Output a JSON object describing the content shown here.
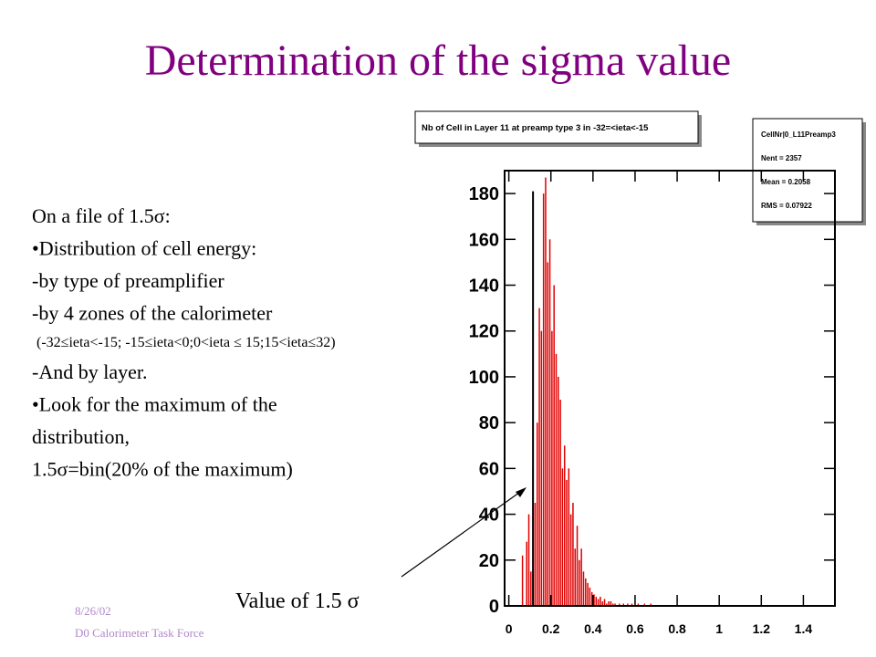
{
  "slide": {
    "title": "Determination of the sigma value",
    "lines": [
      "On a file of 1.5σ:",
      "•Distribution of cell energy:",
      "-by type of preamplifier",
      "-by 4 zones of the calorimeter"
    ],
    "zones": "(-32≤ieta<-15; -15≤ieta<0;0<ieta ≤ 15;15<ieta≤32)",
    "lines2": [
      "-And by layer.",
      "•Look for the maximum of the",
      "distribution,",
      "1.5σ=bin(20% of the maximum)"
    ],
    "annotation": "Value of 1.5 σ",
    "footer": [
      "8/26/02",
      "D0 Calorimeter Task Force"
    ]
  },
  "chart_data": {
    "type": "histogram",
    "title": "Nb of Cell in Layer 11 at preamp type 3 in -32=<ieta<-15",
    "stats": [
      "CellNr|0_L11Preamp3",
      "Nent = 2357",
      "Mean = 0.2058",
      "RMS = 0.07922"
    ],
    "bins": [
      0.05,
      0.06,
      0.07,
      0.08,
      0.09,
      0.1,
      0.11,
      0.12,
      0.13,
      0.14,
      0.15,
      0.16,
      0.17,
      0.18,
      0.19,
      0.2,
      0.21,
      0.22,
      0.23,
      0.24,
      0.25,
      0.26,
      0.27,
      0.28,
      0.29,
      0.3,
      0.31,
      0.32,
      0.33,
      0.34,
      0.35,
      0.36,
      0.37,
      0.38,
      0.39,
      0.4,
      0.41,
      0.42,
      0.43,
      0.44,
      0.45,
      0.46,
      0.47,
      0.48,
      0.49,
      0.5,
      0.51,
      0.52,
      0.53,
      0.54,
      0.55,
      0.56,
      0.57,
      0.58,
      0.59,
      0.6,
      0.61,
      0.62,
      0.63,
      0.64,
      0.65,
      0.66,
      0.67,
      0.68,
      0.69,
      0.7
    ],
    "values": [
      0,
      22,
      0,
      28,
      40,
      15,
      60,
      45,
      80,
      130,
      120,
      180,
      187,
      150,
      160,
      120,
      140,
      110,
      100,
      90,
      60,
      70,
      55,
      60,
      40,
      45,
      25,
      35,
      20,
      25,
      15,
      12,
      10,
      8,
      6,
      5,
      4,
      3,
      4,
      2,
      3,
      1,
      2,
      2,
      1,
      1,
      0,
      1,
      0,
      1,
      0,
      1,
      0,
      1,
      0,
      0,
      1,
      0,
      0,
      1,
      0,
      0,
      1,
      0,
      0
    ],
    "color": "#e00000",
    "marker": {
      "x": 0.115,
      "top": 181,
      "color": "#000000"
    },
    "xlim": [
      -0.02,
      1.55
    ],
    "xticks": [
      0,
      0.2,
      0.4,
      0.6,
      0.8,
      1,
      1.2,
      1.4
    ],
    "ylim": [
      0,
      190
    ],
    "yticks": [
      0,
      20,
      40,
      60,
      80,
      100,
      120,
      140,
      160,
      180
    ]
  }
}
